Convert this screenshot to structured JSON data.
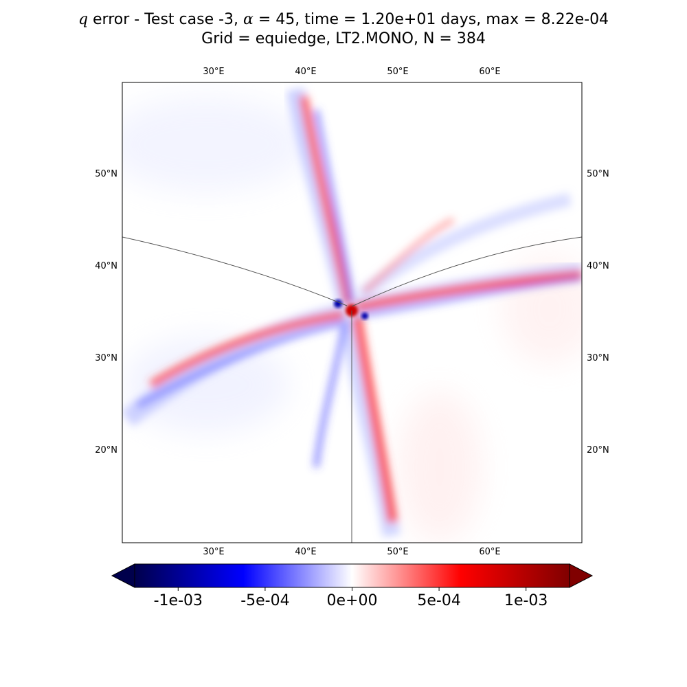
{
  "title": {
    "line1_var": "q",
    "line1_prefix": " error - Test case -3, ",
    "line1_alpha_symbol": "α",
    "line1_rest": " = 45, time = 1.20e+01 days, max = 8.22e-04",
    "line2": "Grid = equiedge, LT2.MONO, N = 384"
  },
  "map": {
    "projection": "orthographic",
    "center": {
      "lon": 45,
      "lat": 35
    },
    "lon_ticks": [
      "30°E",
      "40°E",
      "50°E",
      "60°E"
    ],
    "lat_ticks": [
      "50°N",
      "40°N",
      "30°N",
      "20°N"
    ],
    "field": "q error",
    "max_value": 0.000822,
    "colors": {
      "negative": "#0000ff",
      "positive": "#ff0000",
      "zero": "#ffffff",
      "grid_line": "#555555"
    }
  },
  "colorbar": {
    "colormap": "seismic",
    "range": [
      -0.00125,
      0.00125
    ],
    "extend": "both",
    "tick_labels": [
      "-1e-03",
      "-5e-04",
      "0e+00",
      "5e-04",
      "1e-03"
    ],
    "tick_values": [
      -0.001,
      -0.0005,
      0,
      0.0005,
      0.001
    ],
    "colors": {
      "min": "#00004c",
      "mid_neg": "#0000ff",
      "center": "#ffffff",
      "mid_pos": "#ff0000",
      "max": "#800000"
    }
  }
}
